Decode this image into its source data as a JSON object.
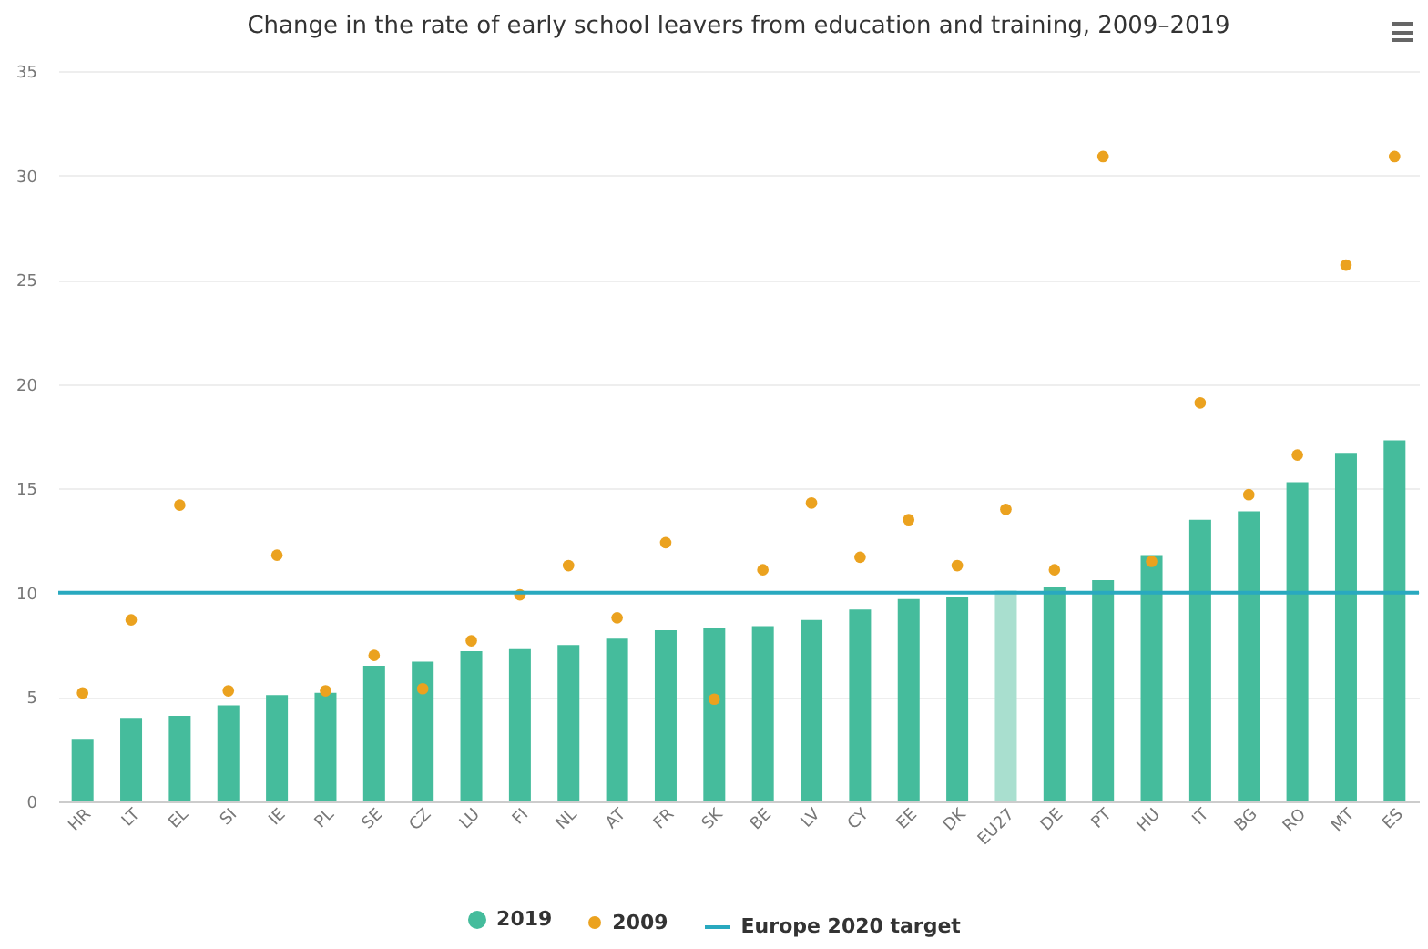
{
  "chart_data": {
    "type": "bar",
    "title": "Change in the rate of early school leavers from education and training, 2009–2019",
    "categories": [
      "HR",
      "LT",
      "EL",
      "SI",
      "IE",
      "PL",
      "SE",
      "CZ",
      "LU",
      "FI",
      "NL",
      "AT",
      "FR",
      "SK",
      "BE",
      "LV",
      "CY",
      "EE",
      "DK",
      "EU27",
      "DE",
      "PT",
      "HU",
      "IT",
      "BG",
      "RO",
      "MT",
      "ES"
    ],
    "series": [
      {
        "name": "2019",
        "color": "#45bc9c",
        "colors": [
          "#45bc9c",
          "#45bc9c",
          "#45bc9c",
          "#45bc9c",
          "#45bc9c",
          "#45bc9c",
          "#45bc9c",
          "#45bc9c",
          "#45bc9c",
          "#45bc9c",
          "#45bc9c",
          "#45bc9c",
          "#45bc9c",
          "#45bc9c",
          "#45bc9c",
          "#45bc9c",
          "#45bc9c",
          "#45bc9c",
          "#45bc9c",
          "#a9dfcf",
          "#45bc9c",
          "#45bc9c",
          "#45bc9c",
          "#45bc9c",
          "#45bc9c",
          "#45bc9c",
          "#45bc9c",
          "#45bc9c"
        ],
        "values": [
          3.0,
          4.0,
          4.1,
          4.6,
          5.1,
          5.2,
          6.5,
          6.7,
          7.2,
          7.3,
          7.5,
          7.8,
          8.2,
          8.3,
          8.4,
          8.7,
          9.2,
          9.7,
          9.8,
          10.1,
          10.3,
          10.6,
          11.8,
          13.5,
          13.9,
          15.3,
          16.7,
          17.3
        ]
      },
      {
        "name": "2009",
        "type": "scatter",
        "color": "#eba21f",
        "values": [
          5.2,
          8.7,
          14.2,
          5.3,
          11.8,
          5.3,
          7.0,
          5.4,
          7.7,
          9.9,
          11.3,
          8.8,
          12.4,
          4.9,
          11.1,
          14.3,
          11.7,
          13.5,
          11.3,
          14.0,
          11.1,
          30.9,
          11.5,
          19.1,
          14.7,
          16.6,
          25.7,
          30.9
        ]
      }
    ],
    "ref_lines": [
      {
        "axis": "y",
        "value": 10,
        "label": "Europe 2020 target",
        "color": "#29a9bf"
      }
    ],
    "ylim": [
      0,
      35
    ],
    "yticks": [
      0,
      5,
      10,
      15,
      20,
      25,
      30,
      35
    ],
    "grid": "y",
    "legend": "bottom",
    "marker": "circle"
  }
}
